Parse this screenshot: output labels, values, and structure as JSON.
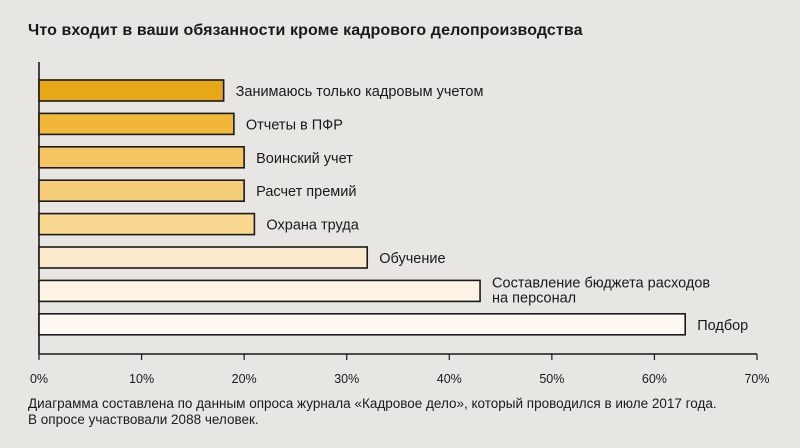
{
  "chart_data": {
    "type": "bar",
    "orientation": "horizontal",
    "title": "Что входит в ваши обязанности кроме кадрового делопроизводства",
    "categories": [
      [
        "Занимаюсь только кадровым учетом"
      ],
      [
        "Отчеты в ПФР"
      ],
      [
        "Воинский учет"
      ],
      [
        "Расчет премий"
      ],
      [
        "Охрана труда"
      ],
      [
        "Обучение"
      ],
      [
        "Составление бюджета расходов",
        "на персонал"
      ],
      [
        "Подбор"
      ]
    ],
    "values": [
      18,
      19,
      20,
      20,
      21,
      32,
      43,
      63
    ],
    "colors": [
      "#e6a817",
      "#f0b73a",
      "#f4c561",
      "#f5cd78",
      "#f8d88f",
      "#fbeacb",
      "#fdf3e4",
      "#fefaf3"
    ],
    "xlim": [
      0,
      70
    ],
    "xticks": [
      "0%",
      "10%",
      "20%",
      "30%",
      "40%",
      "50%",
      "60%",
      "70%"
    ],
    "xtick_values": [
      0,
      10,
      20,
      30,
      40,
      50,
      60,
      70
    ],
    "grid": false,
    "legend": "none"
  },
  "footnote": {
    "line1": "Диаграмма составлена по данным опроса журнала «Кадровое дело», который проводился в июле 2017 года.",
    "line2": "В опросе участвовали 2088 человек."
  }
}
